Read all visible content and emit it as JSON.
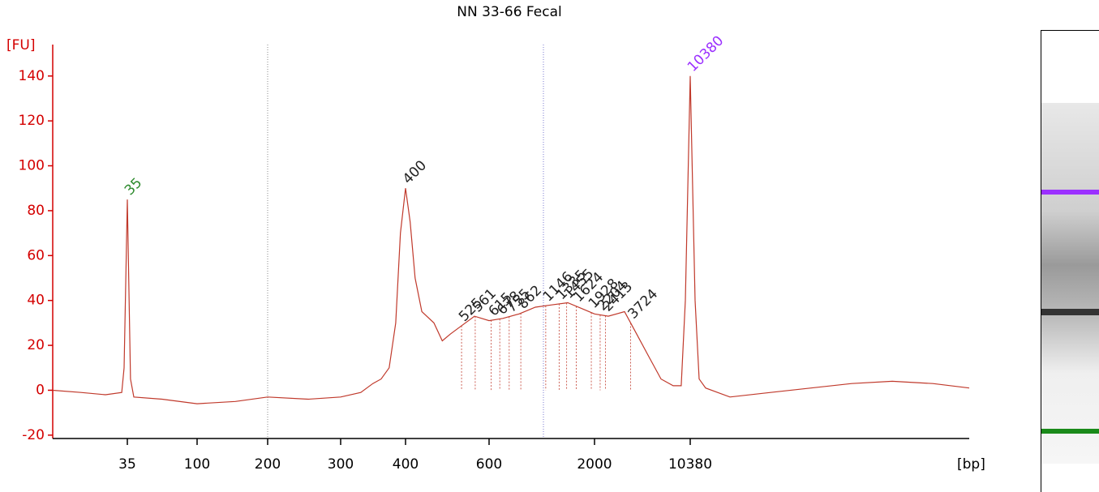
{
  "chart_data": {
    "type": "line",
    "title": "NN 33-66 Fecal",
    "ylabel": "[FU]",
    "xlabel": "[bp]",
    "color": "#c0392b",
    "axis_color": "#d40000",
    "x": [
      12,
      18,
      25.6,
      32.3,
      33.4,
      35,
      36.7,
      38.6,
      59.1,
      100,
      145.6,
      200,
      250.6,
      300,
      328,
      346,
      359,
      372,
      383,
      391,
      400,
      409,
      419,
      433,
      459,
      478,
      497,
      527,
      559,
      600,
      702,
      845,
      1017,
      1224,
      1473,
      1773,
      2000,
      2535,
      3350,
      4130,
      5090,
      6280,
      7740,
      8890,
      9550,
      10380,
      11270,
      12080,
      13490,
      20420,
      40740,
      81280,
      162200,
      323600,
      645700,
      1200000
    ],
    "values": [
      0,
      -1,
      -2,
      -1,
      10,
      85,
      5,
      -3,
      -4,
      -6,
      -5,
      -3,
      -4,
      -3,
      -1,
      3,
      5,
      10,
      30,
      70,
      90,
      75,
      50,
      35,
      30,
      22,
      25,
      29,
      33,
      31,
      32,
      34,
      37,
      38,
      39,
      36,
      34,
      33,
      35,
      25,
      15,
      5,
      2,
      2,
      40,
      140,
      40,
      5,
      1,
      -3,
      -1,
      1,
      3,
      4,
      3,
      1
    ],
    "xlim": [
      12,
      1200000
    ],
    "xticks": [
      35,
      100,
      200,
      300,
      400,
      600,
      2000,
      10380
    ],
    "ylim": [
      -21.5,
      154
    ],
    "yticks": [
      -20,
      0,
      20,
      40,
      60,
      80,
      100,
      120,
      140
    ],
    "peaks": {
      "values": [
        35,
        400,
        525,
        561,
        615,
        678,
        755,
        862,
        1146,
        1335,
        1455,
        1624,
        1928,
        2204,
        2413,
        3724,
        10380
      ],
      "colors": [
        "#2e8b2e",
        "#222222",
        "#222222",
        "#222222",
        "#222222",
        "#222222",
        "#222222",
        "#222222",
        "#222222",
        "#222222",
        "#222222",
        "#222222",
        "#222222",
        "#222222",
        "#222222",
        "#222222",
        "#9b30ff"
      ]
    }
  }
}
